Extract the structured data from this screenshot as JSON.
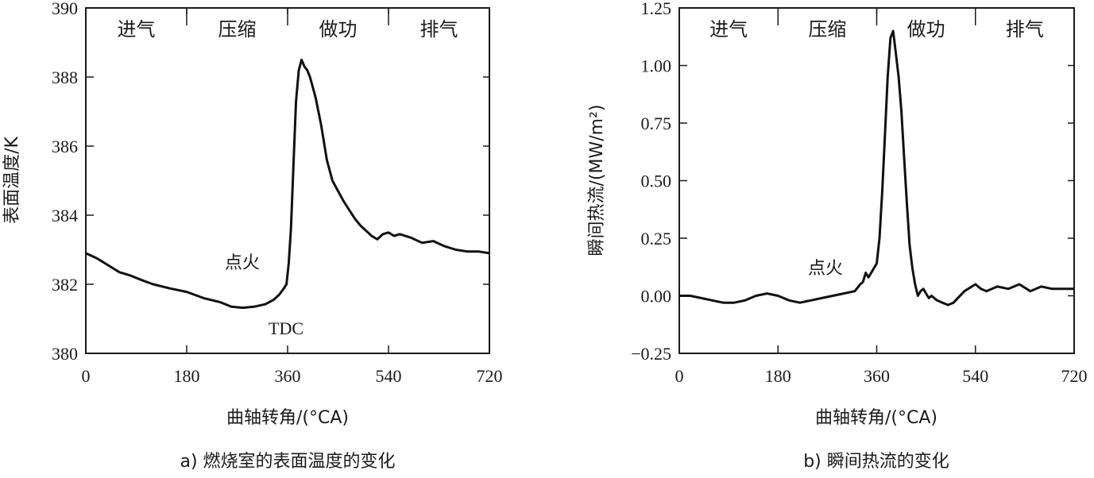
{
  "chart_data": [
    {
      "type": "line",
      "caption": "a) 燃烧室的表面温度的变化",
      "xlabel": "曲轴转角/(°CA)",
      "ylabel": "表面温度/K",
      "xlim": [
        0,
        720
      ],
      "ylim": [
        380,
        390
      ],
      "xticks": [
        0,
        180,
        360,
        540,
        720
      ],
      "yticks": [
        380,
        382,
        384,
        386,
        388,
        390
      ],
      "phases": [
        {
          "label": "进气",
          "start": 0,
          "end": 180
        },
        {
          "label": "压缩",
          "start": 180,
          "end": 360
        },
        {
          "label": "做功",
          "start": 360,
          "end": 540
        },
        {
          "label": "排气",
          "start": 540,
          "end": 720
        }
      ],
      "annotations": [
        {
          "text": "点火",
          "x": 330,
          "y": 382.5
        },
        {
          "text": "TDC",
          "x": 360,
          "y": 380.7
        }
      ],
      "grid": false,
      "series": [
        {
          "x": [
            0,
            20,
            40,
            60,
            80,
            100,
            120,
            150,
            180,
            210,
            240,
            260,
            280,
            300,
            320,
            335,
            345,
            352,
            358,
            362,
            366,
            370,
            375,
            380,
            385,
            390,
            395,
            400,
            410,
            420,
            430,
            440,
            450,
            460,
            470,
            480,
            490,
            500,
            510,
            520,
            530,
            540,
            550,
            560,
            580,
            600,
            620,
            640,
            660,
            680,
            700,
            720
          ],
          "y": [
            382.9,
            382.75,
            382.55,
            382.35,
            382.25,
            382.12,
            382.0,
            381.88,
            381.78,
            381.6,
            381.48,
            381.35,
            381.32,
            381.35,
            381.42,
            381.55,
            381.7,
            381.85,
            382.0,
            382.6,
            383.6,
            385.3,
            387.3,
            388.2,
            388.5,
            388.3,
            388.2,
            388.0,
            387.4,
            386.6,
            385.6,
            385.0,
            384.7,
            384.4,
            384.15,
            383.9,
            383.7,
            383.55,
            383.4,
            383.3,
            383.45,
            383.5,
            383.4,
            383.45,
            383.35,
            383.2,
            383.25,
            383.1,
            383.0,
            382.95,
            382.95,
            382.9
          ]
        }
      ]
    },
    {
      "type": "line",
      "caption": "b) 瞬间热流的变化",
      "xlabel": "曲轴转角/(°CA)",
      "ylabel": "瞬间热流/(MW/m²)",
      "xlim": [
        0,
        720
      ],
      "ylim": [
        -0.25,
        1.25
      ],
      "xticks": [
        0,
        180,
        360,
        540,
        720
      ],
      "yticks": [
        -0.25,
        0.0,
        0.25,
        0.5,
        0.75,
        1.0,
        1.25
      ],
      "ytick_labels": [
        "−0.25",
        "0.00",
        "0.25",
        "0.50",
        "0.75",
        "1.00",
        "1.25"
      ],
      "phases": [
        {
          "label": "进气",
          "start": 0,
          "end": 180
        },
        {
          "label": "压缩",
          "start": 180,
          "end": 360
        },
        {
          "label": "做功",
          "start": 360,
          "end": 540
        },
        {
          "label": "排气",
          "start": 540,
          "end": 720
        }
      ],
      "annotations": [
        {
          "text": "点火",
          "x": 310,
          "y": 0.1
        }
      ],
      "grid": false,
      "series": [
        {
          "x": [
            0,
            20,
            40,
            60,
            80,
            100,
            120,
            140,
            160,
            180,
            200,
            220,
            240,
            260,
            280,
            300,
            320,
            330,
            335,
            340,
            345,
            350,
            355,
            360,
            365,
            370,
            375,
            380,
            385,
            390,
            395,
            400,
            405,
            410,
            415,
            420,
            425,
            430,
            435,
            440,
            445,
            450,
            455,
            460,
            470,
            480,
            490,
            500,
            520,
            540,
            550,
            560,
            570,
            580,
            600,
            620,
            640,
            660,
            680,
            700,
            720
          ],
          "y": [
            0.0,
            0.0,
            -0.01,
            -0.02,
            -0.03,
            -0.03,
            -0.02,
            0.0,
            0.01,
            0.0,
            -0.02,
            -0.03,
            -0.02,
            -0.01,
            0.0,
            0.01,
            0.02,
            0.05,
            0.06,
            0.1,
            0.08,
            0.1,
            0.12,
            0.14,
            0.25,
            0.45,
            0.7,
            0.95,
            1.12,
            1.15,
            1.05,
            0.95,
            0.8,
            0.6,
            0.4,
            0.22,
            0.12,
            0.05,
            0.0,
            0.02,
            0.03,
            0.01,
            -0.01,
            0.0,
            -0.02,
            -0.03,
            -0.04,
            -0.03,
            0.02,
            0.05,
            0.03,
            0.02,
            0.03,
            0.04,
            0.03,
            0.05,
            0.02,
            0.04,
            0.03,
            0.03,
            0.03
          ]
        }
      ]
    }
  ]
}
